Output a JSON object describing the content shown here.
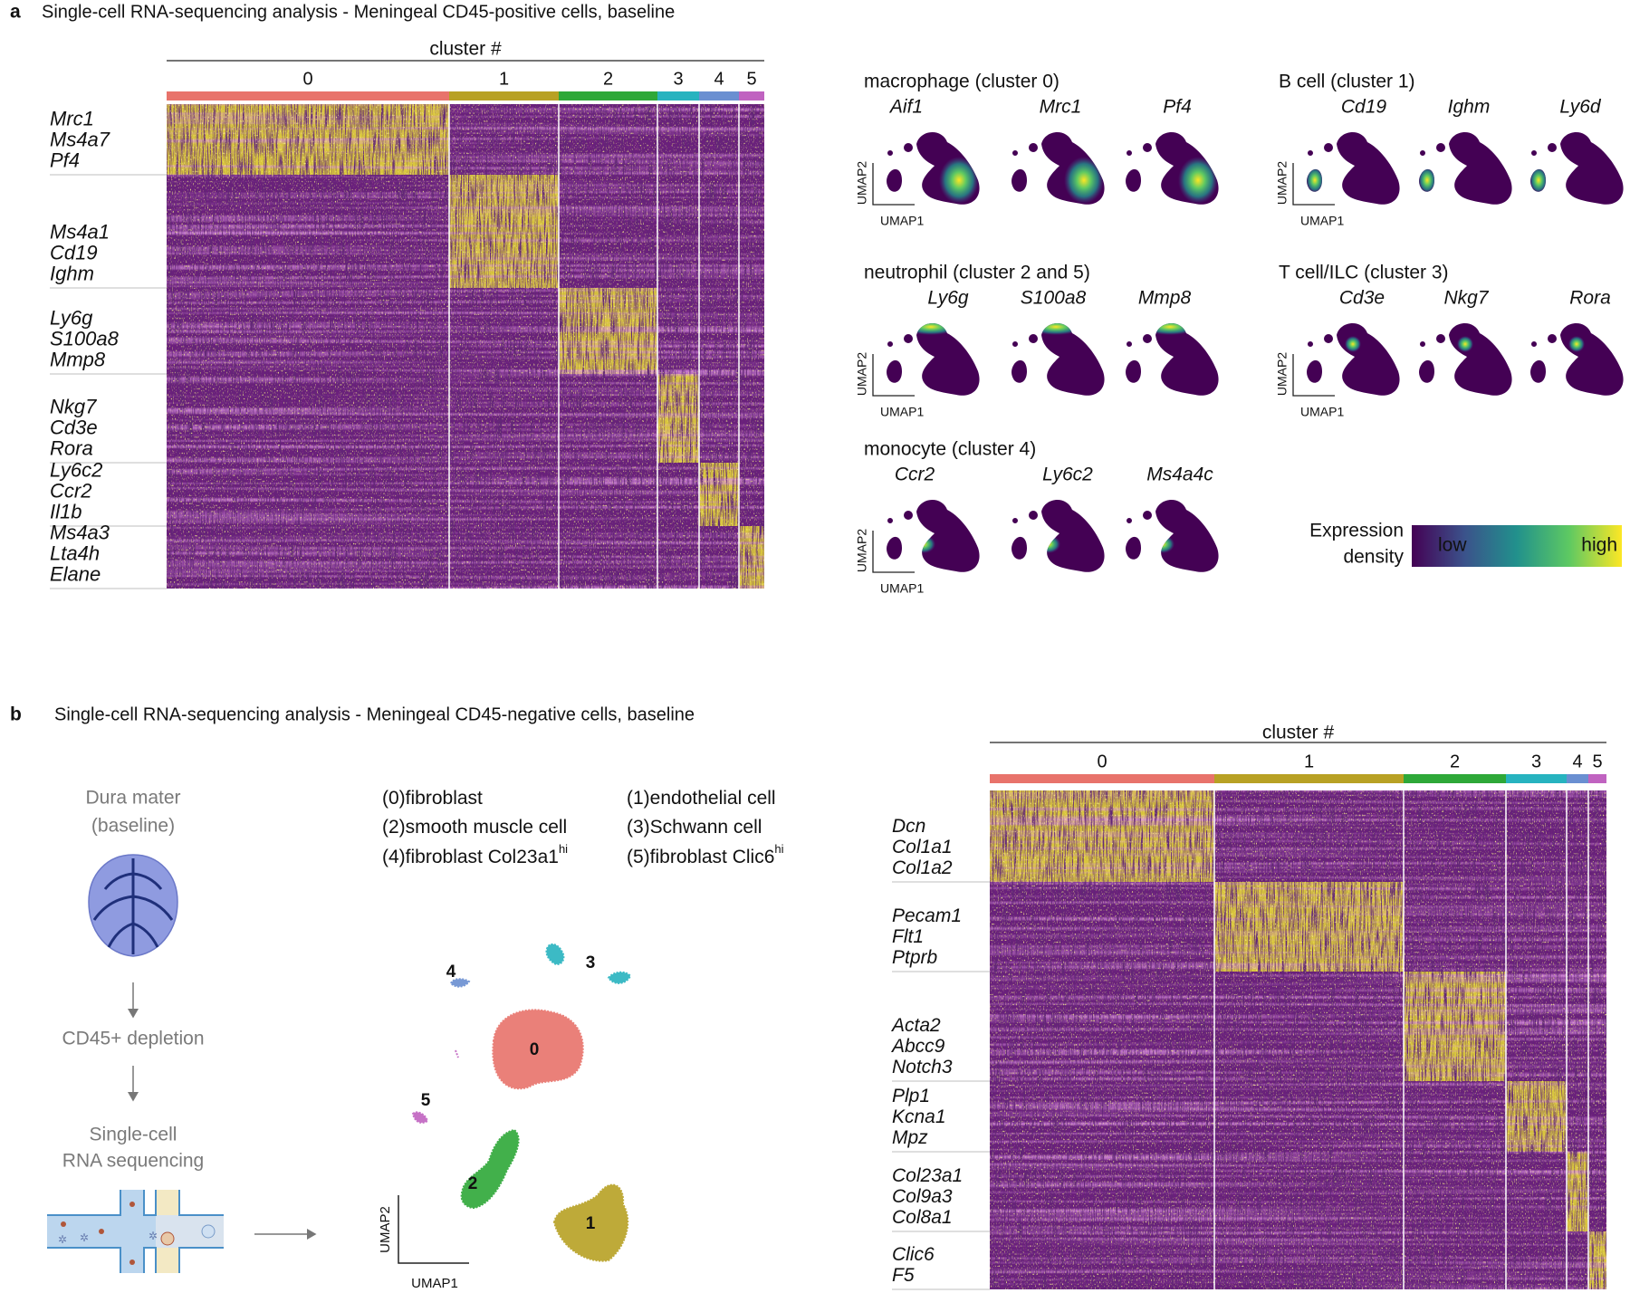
{
  "panel_a": {
    "label": "a",
    "title": "Single-cell RNA-sequencing analysis - Meningeal CD45-positive cells, baseline",
    "heatmap": {
      "axis_title": "cluster #",
      "clusters": [
        "0",
        "1",
        "2",
        "3",
        "4",
        "5"
      ],
      "gene_groups": [
        [
          "Mrc1",
          "Ms4a7",
          "Pf4"
        ],
        [
          "Ms4a1",
          "Cd19",
          "Ighm"
        ],
        [
          "Ly6g",
          "S100a8",
          "Mmp8"
        ],
        [
          "Nkg7",
          "Cd3e",
          "Rora"
        ],
        [
          "Ly6c2",
          "Ccr2",
          "Il1b"
        ],
        [
          "Ms4a3",
          "Lta4h",
          "Elane"
        ]
      ]
    },
    "feature_plots": [
      {
        "title": "macrophage (cluster 0)",
        "genes": [
          "Aif1",
          "Mrc1",
          "Pf4"
        ]
      },
      {
        "title": "B cell (cluster 1)",
        "genes": [
          "Cd19",
          "Ighm",
          "Ly6d"
        ]
      },
      {
        "title": "neutrophil (cluster 2 and 5)",
        "genes": [
          "Ly6g",
          "S100a8",
          "Mmp8"
        ]
      },
      {
        "title": "T cell/ILC (cluster 3)",
        "genes": [
          "Cd3e",
          "Nkg7",
          "Rora"
        ]
      },
      {
        "title": "monocyte (cluster 4)",
        "genes": [
          "Ccr2",
          "Ly6c2",
          "Ms4a4c"
        ]
      }
    ],
    "umap_axes": {
      "x": "UMAP1",
      "y": "UMAP2"
    },
    "colorbar": {
      "title": [
        "Expression",
        "density"
      ],
      "low": "low",
      "high": "high",
      "colors": [
        "#440154",
        "#3b528b",
        "#21918c",
        "#5ec962",
        "#fde725"
      ]
    }
  },
  "panel_b": {
    "label": "b",
    "title": "Single-cell RNA-sequencing analysis - Meningeal CD45-negative cells, baseline",
    "workflow": {
      "sample": [
        "Dura mater",
        "(baseline)"
      ],
      "step": "CD45+ depletion",
      "method": [
        "Single-cell",
        "RNA sequencing"
      ]
    },
    "legend": [
      {
        "text": "(0)fibroblast"
      },
      {
        "text": "(1)endothelial cell"
      },
      {
        "text": "(2)smooth muscle cell"
      },
      {
        "text": "(3)Schwann cell"
      },
      {
        "text": "(4)fibroblast Col23a1",
        "sup": "hi"
      },
      {
        "text": "(5)fibroblast Clic6",
        "sup": "hi"
      }
    ],
    "umap": {
      "cluster_labels": [
        "0",
        "1",
        "2",
        "3",
        "4",
        "5"
      ],
      "axes": {
        "x": "UMAP1",
        "y": "UMAP2"
      }
    },
    "heatmap": {
      "axis_title": "cluster #",
      "clusters": [
        "0",
        "1",
        "2",
        "3",
        "4",
        "5"
      ],
      "gene_groups": [
        [
          "Dcn",
          "Col1a1",
          "Col1a2"
        ],
        [
          "Pecam1",
          "Flt1",
          "Ptprb"
        ],
        [
          "Acta2",
          "Abcc9",
          "Notch3"
        ],
        [
          "Plp1",
          "Kcna1",
          "Mpz"
        ],
        [
          "Col23a1",
          "Col9a3",
          "Col8a1"
        ],
        [
          "Clic6",
          "F5"
        ]
      ]
    }
  },
  "cluster_colors": [
    "#e8736b",
    "#b8a124",
    "#2ea838",
    "#27b3bf",
    "#6a8fd1",
    "#c063c0"
  ],
  "heatmap_colors": {
    "low": "#6b1f7c",
    "high": "#d9c63c"
  }
}
